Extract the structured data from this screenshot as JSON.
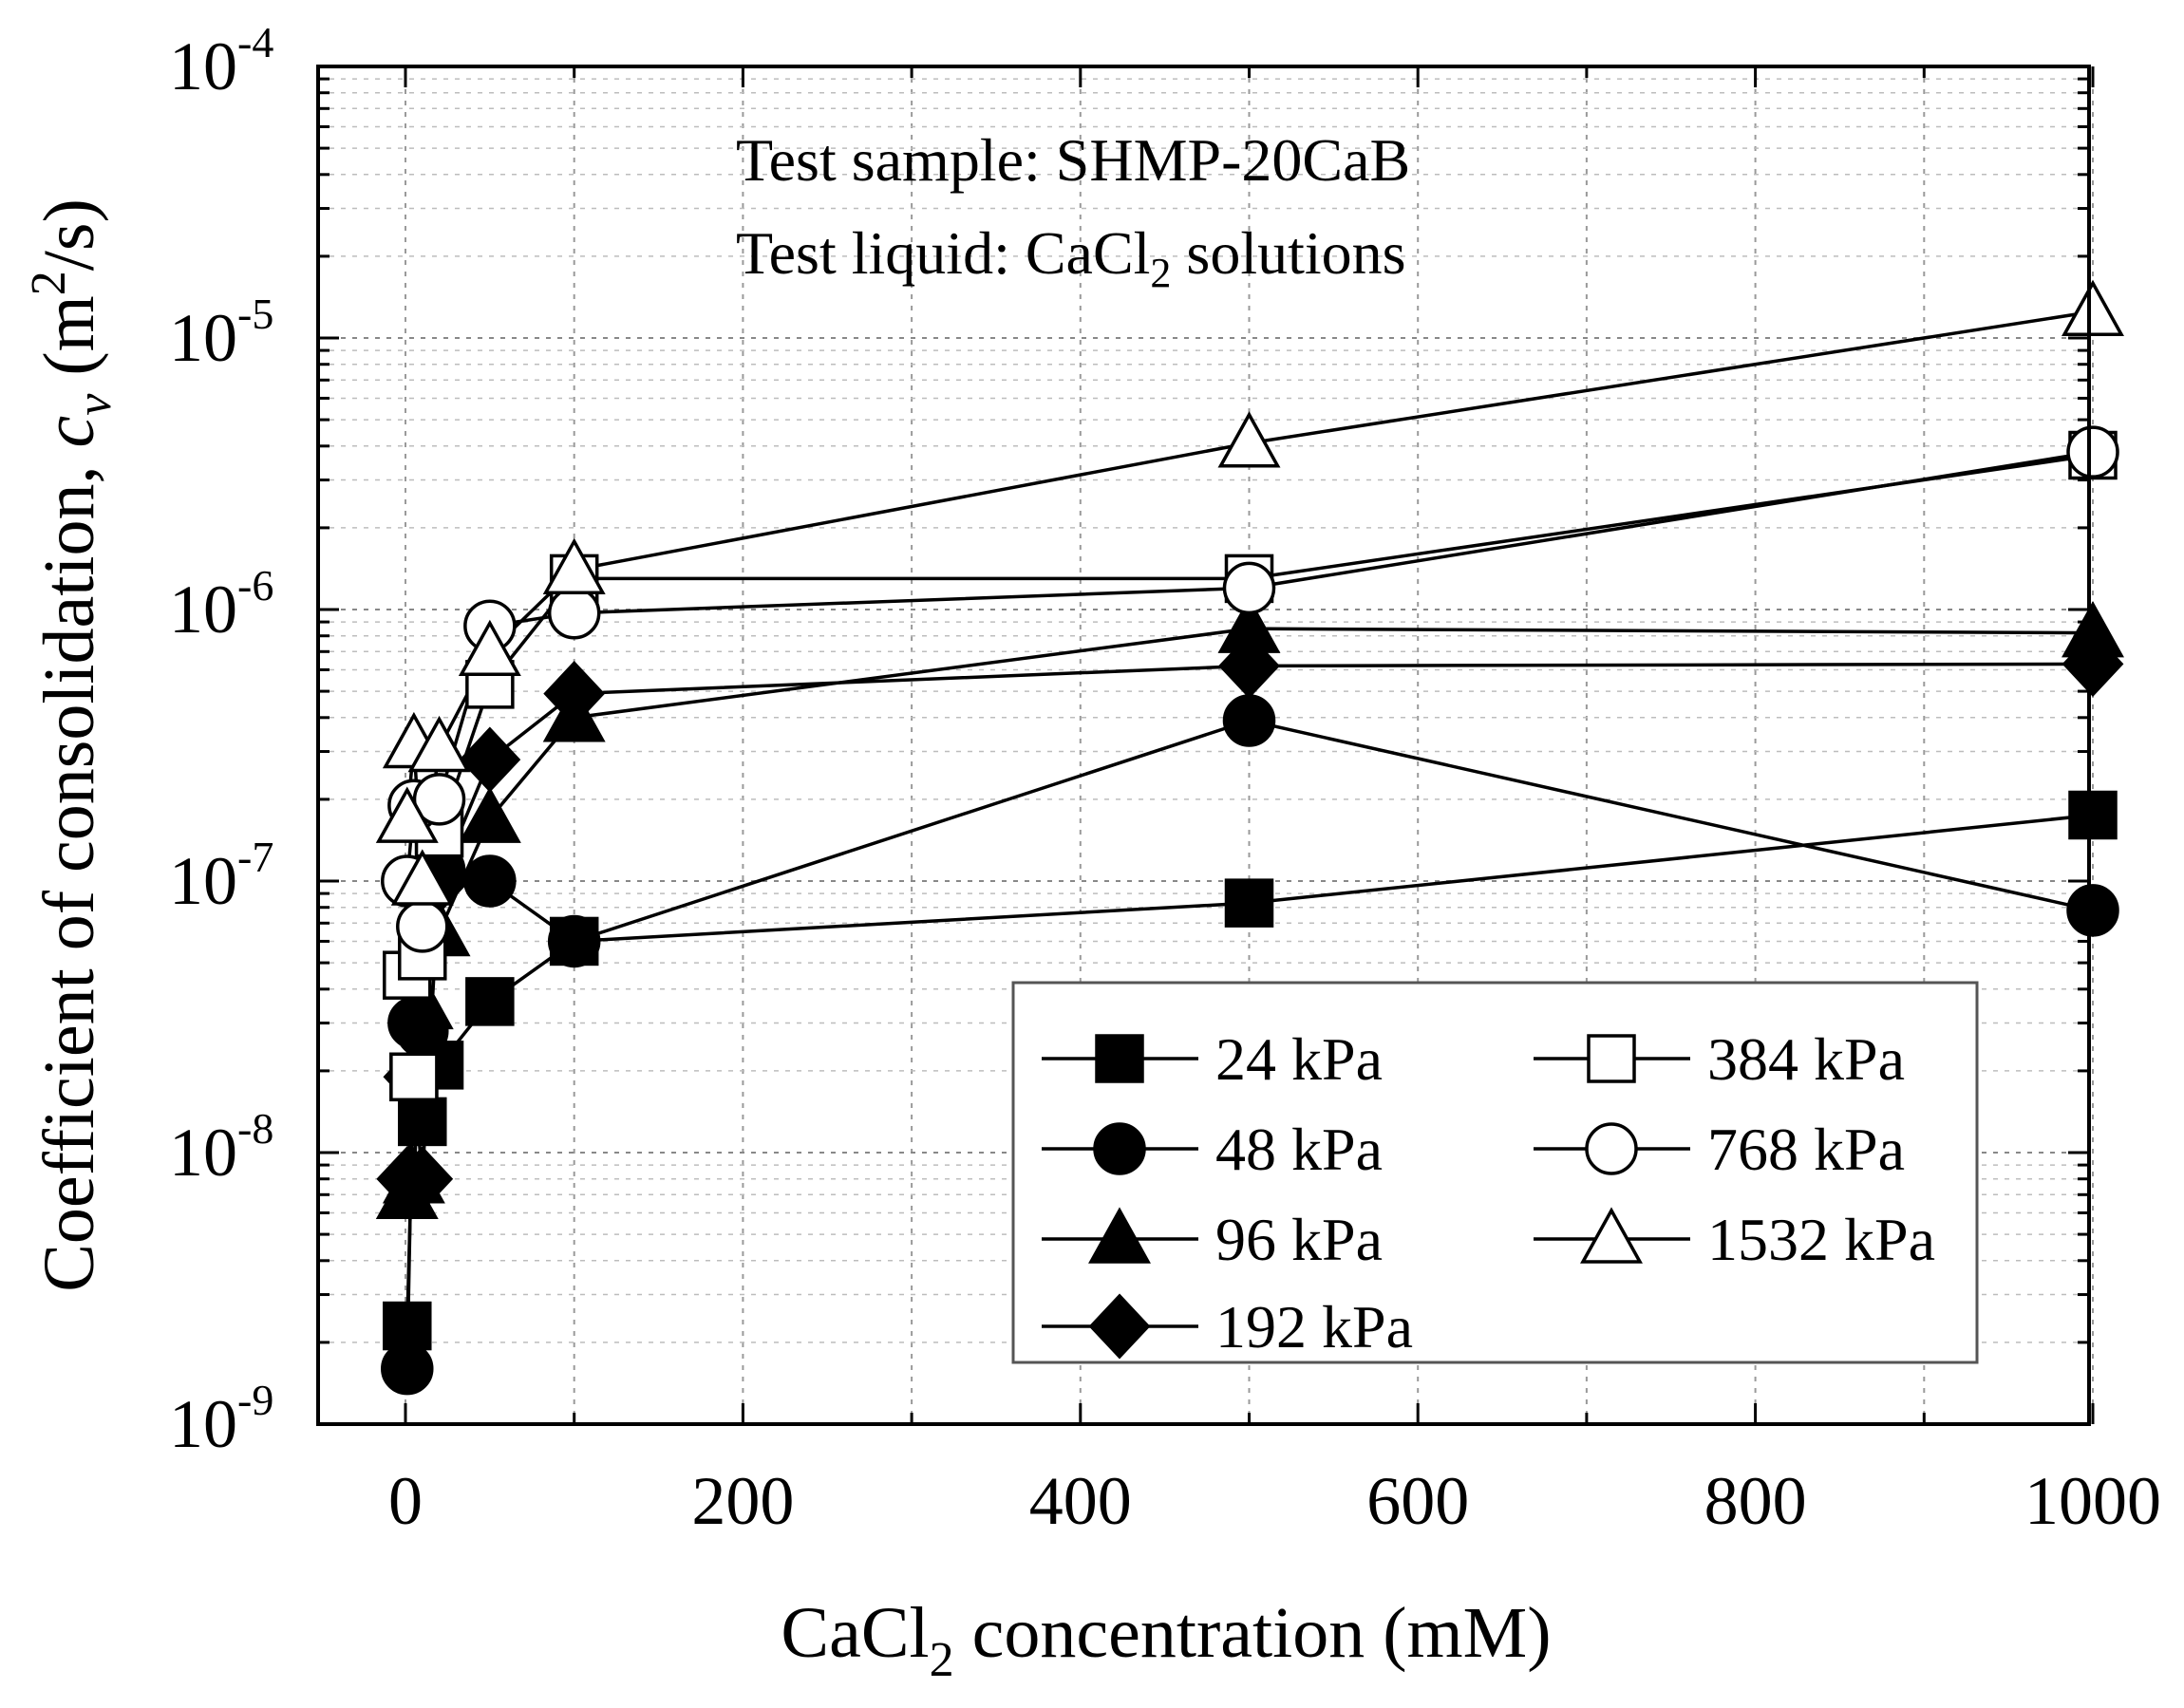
{
  "chart_data": {
    "type": "line",
    "yscale": "log",
    "xlim": [
      -50,
      1020
    ],
    "ylim": [
      1e-09,
      0.0001
    ],
    "xticks": [
      0,
      200,
      400,
      600,
      800,
      1000
    ],
    "xtick_labels": [
      "0",
      "200",
      "400",
      "600",
      "800",
      "1000"
    ],
    "yticks": [
      1e-09,
      1e-08,
      1e-07,
      1e-06,
      1e-05,
      0.0001
    ],
    "ytick_labels": [
      {
        "base": "10",
        "exp": "-9"
      },
      {
        "base": "10",
        "exp": "-8"
      },
      {
        "base": "10",
        "exp": "-7"
      },
      {
        "base": "10",
        "exp": "-6"
      },
      {
        "base": "10",
        "exp": "-5"
      },
      {
        "base": "10",
        "exp": "-4"
      }
    ],
    "xlabel": {
      "pre": "CaCl",
      "sub": "2",
      "post": " concentration (mM)"
    },
    "ylabel": {
      "pre": "Coefficient of consolidation, ",
      "var": "c",
      "var_sub": "v",
      "mid": " (m",
      "sup": "2",
      "post": "/s)"
    },
    "annotation": {
      "line1": "Test sample: SHMP-20CaB",
      "line2_pre": "Test liquid: CaCl",
      "line2_sub": "2",
      "line2_post": " solutions"
    },
    "legend_position": "bottom-right",
    "grid": true,
    "series": [
      {
        "name": "24 kPa",
        "marker": "square",
        "filled": true,
        "x": [
          1,
          5,
          10,
          20,
          50,
          100,
          500,
          1000
        ],
        "y": [
          2.3e-09,
          1.9e-08,
          1.3e-08,
          2.1e-08,
          3.6e-08,
          6e-08,
          8.3e-08,
          1.75e-07
        ]
      },
      {
        "name": "48 kPa",
        "marker": "circle",
        "filled": true,
        "x": [
          1,
          5,
          10,
          20,
          50,
          100,
          500,
          1000
        ],
        "y": [
          1.6e-09,
          3e-08,
          2.8e-08,
          1.1e-07,
          1e-07,
          6e-08,
          3.9e-07,
          7.8e-08
        ]
      },
      {
        "name": "96 kPa",
        "marker": "triangle",
        "filled": true,
        "x": [
          1,
          5,
          10,
          20,
          50,
          100,
          500,
          1000
        ],
        "y": [
          7e-09,
          8e-09,
          3.5e-08,
          6.5e-08,
          1.7e-07,
          4e-07,
          8.5e-07,
          8.2e-07
        ]
      },
      {
        "name": "192 kPa",
        "marker": "diamond",
        "filled": true,
        "x": [
          1,
          5,
          10,
          20,
          50,
          100,
          500,
          1000
        ],
        "y": [
          8e-09,
          1.9e-08,
          8e-09,
          1e-07,
          2.8e-07,
          4.9e-07,
          6.2e-07,
          6.3e-07
        ]
      },
      {
        "name": "384 kPa",
        "marker": "square",
        "filled": false,
        "x": [
          1,
          5,
          10,
          20,
          50,
          100,
          500,
          1000
        ],
        "y": [
          4.5e-08,
          1.9e-08,
          5.3e-08,
          1.5e-07,
          5.3e-07,
          1.3e-06,
          1.3e-06,
          3.7e-06
        ]
      },
      {
        "name": "768 kPa",
        "marker": "circle",
        "filled": false,
        "x": [
          1,
          5,
          10,
          20,
          50,
          100,
          500,
          1000
        ],
        "y": [
          1e-07,
          1.9e-07,
          6.8e-08,
          2e-07,
          8.7e-07,
          9.7e-07,
          1.2e-06,
          3.8e-06
        ]
      },
      {
        "name": "1532 kPa",
        "marker": "triangle",
        "filled": false,
        "x": [
          1,
          5,
          10,
          20,
          50,
          100,
          500,
          1000
        ],
        "y": [
          1.7e-07,
          3.2e-07,
          1e-07,
          3.1e-07,
          7e-07,
          1.4e-06,
          4.1e-06,
          1.25e-05
        ]
      }
    ]
  }
}
